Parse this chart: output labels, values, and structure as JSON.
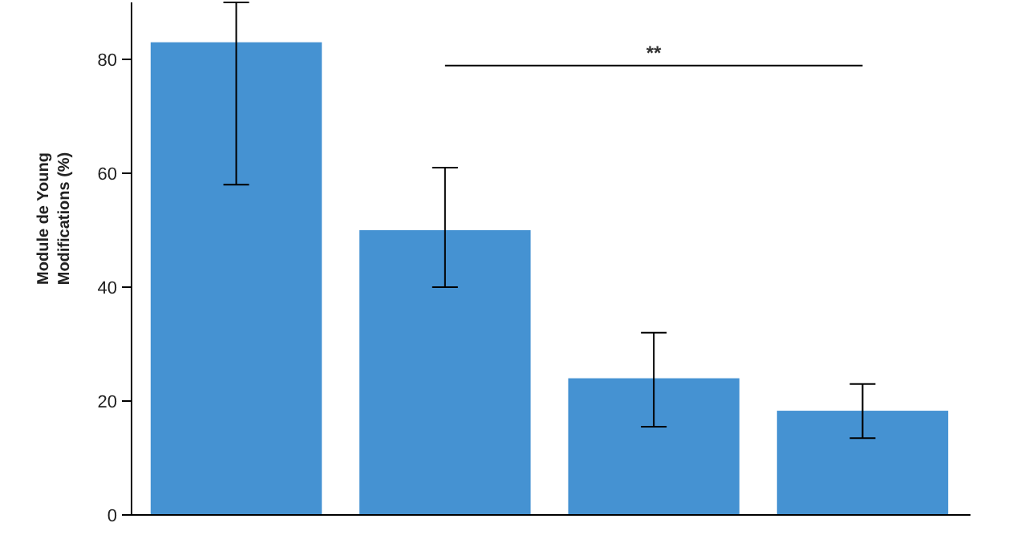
{
  "chart_data": {
    "type": "bar",
    "ylabel": "Module de Young Modifications (%)",
    "categories": [
      null,
      null,
      null,
      null
    ],
    "values": [
      83,
      50,
      24,
      18.3
    ],
    "color": "#4592d2",
    "errors": [
      [
        58,
        90
      ],
      [
        40,
        61
      ],
      [
        15.5,
        32
      ],
      [
        13.5,
        23
      ]
    ],
    "ylim": [
      0,
      90
    ],
    "yticks": [
      0,
      20,
      40,
      60,
      80
    ],
    "grid": false,
    "annotations": [
      "**"
    ]
  }
}
